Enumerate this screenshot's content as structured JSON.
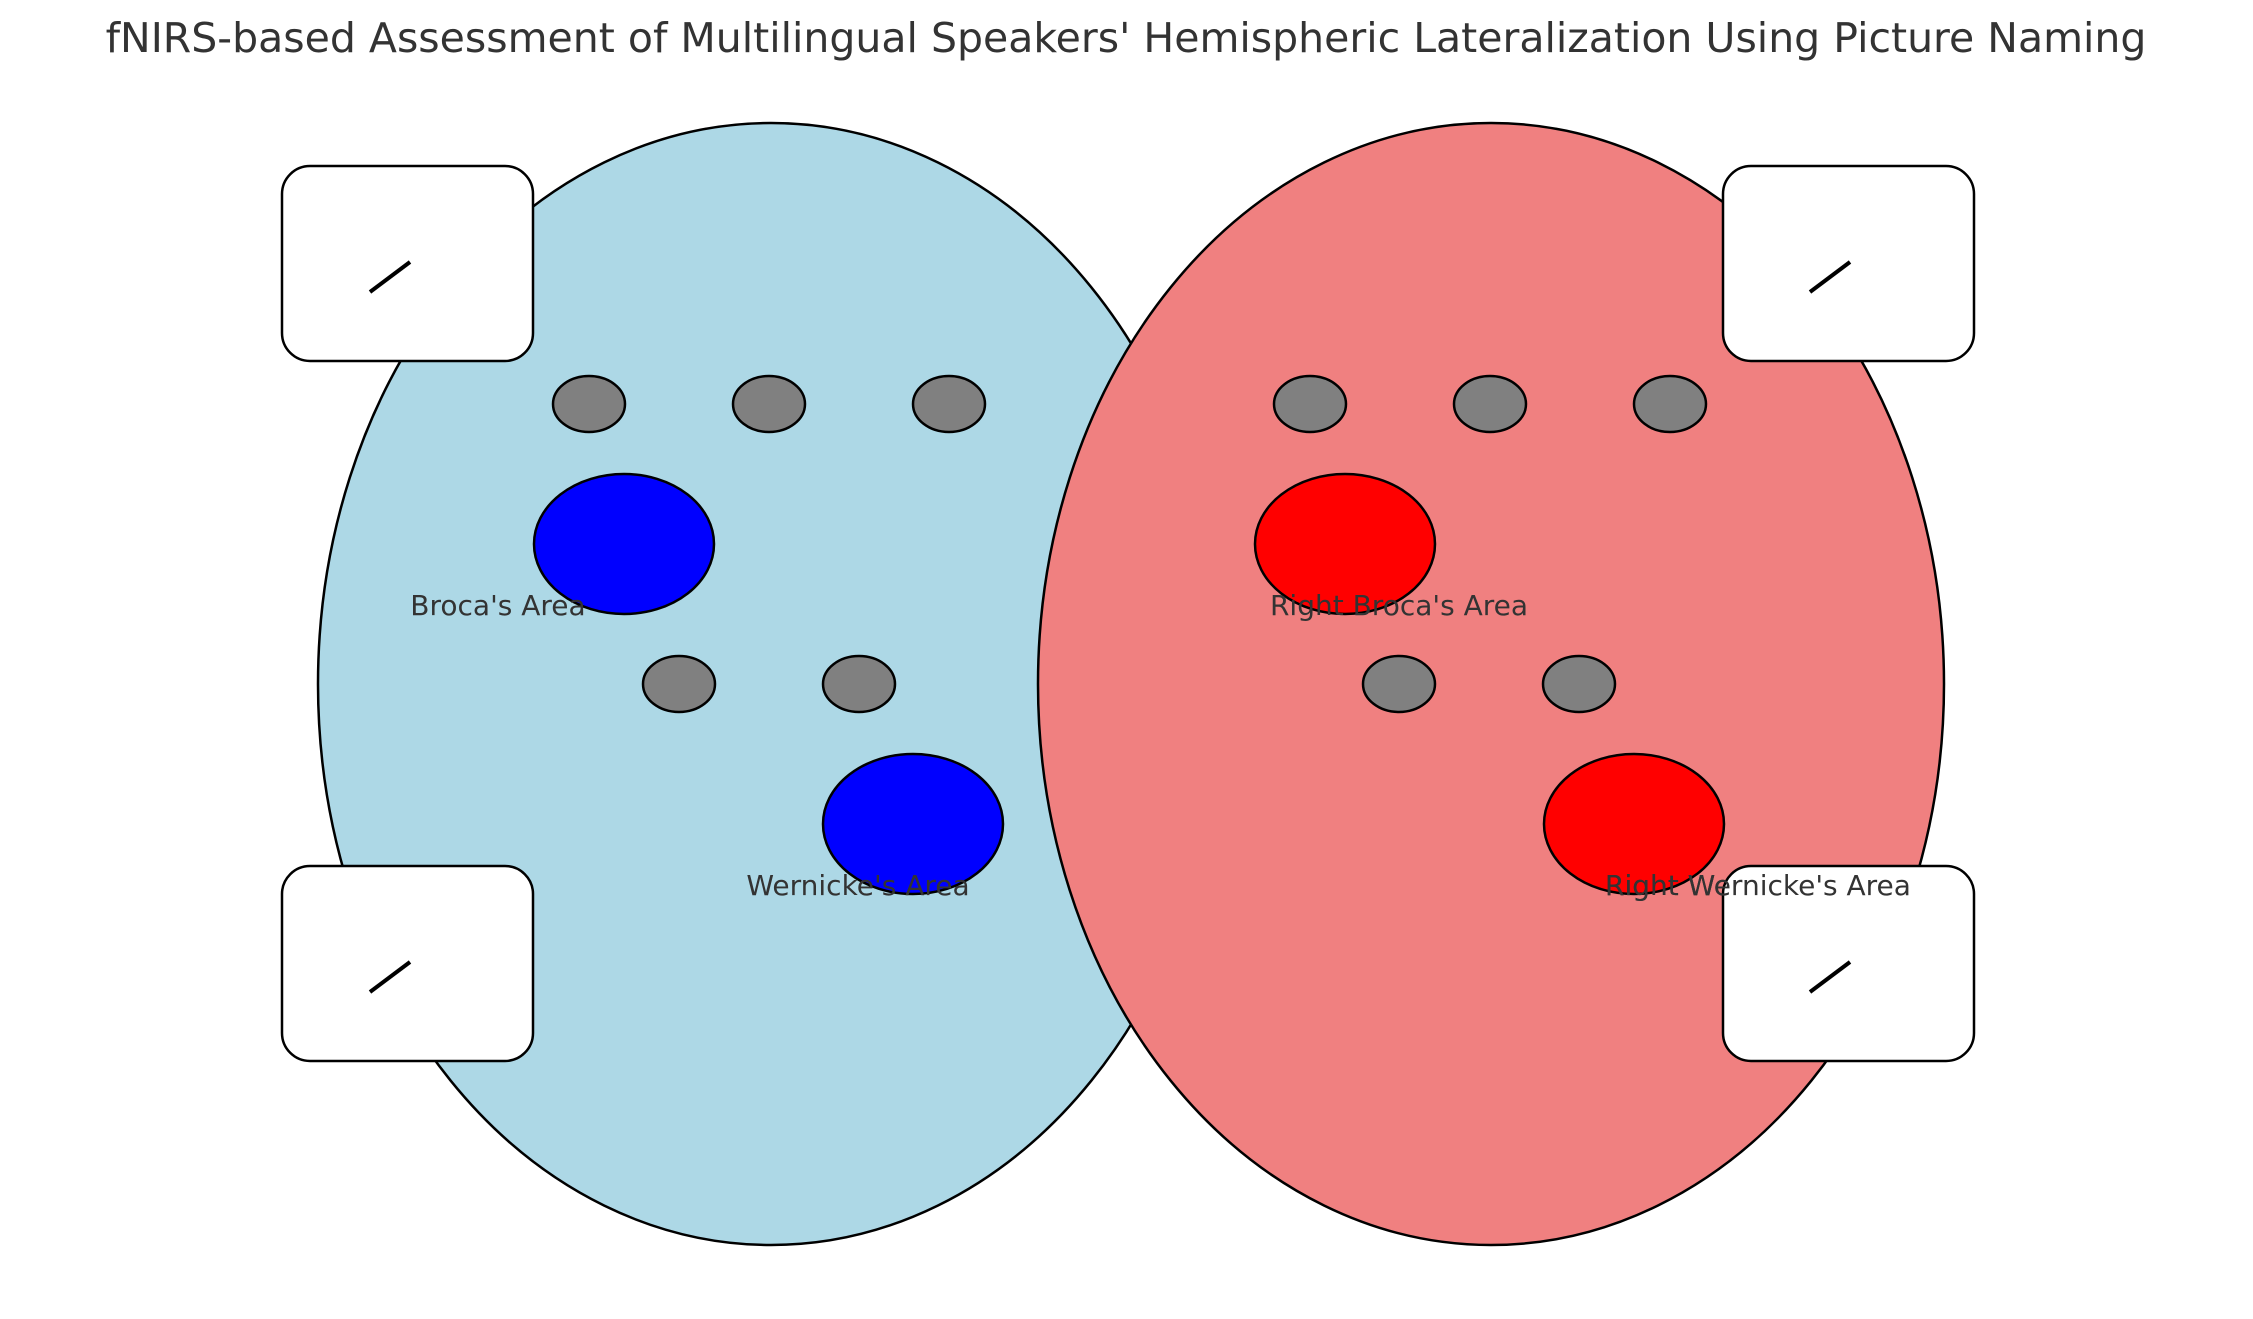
{
  "title": "fNIRS-based Assessment of Multilingual Speakers' Hemispheric Lateralization Using Picture Naming",
  "colors": {
    "left_hemisphere": "#add8e6",
    "right_hemisphere": "#f08080",
    "left_region": "#0000ff",
    "right_region": "#ff0000",
    "sensor": "#808080",
    "outline": "#000000",
    "text": "#333333"
  },
  "hemispheres": {
    "left": {
      "regions": [
        {
          "label": "Broca's Area"
        },
        {
          "label": "Wernicke's Area"
        }
      ],
      "sensor_count": 5
    },
    "right": {
      "regions": [
        {
          "label": "Right Broca's Area"
        },
        {
          "label": "Right Wernicke's Area"
        }
      ],
      "sensor_count": 5
    }
  },
  "side_panels": {
    "count": 4,
    "icon": "slash-icon"
  }
}
